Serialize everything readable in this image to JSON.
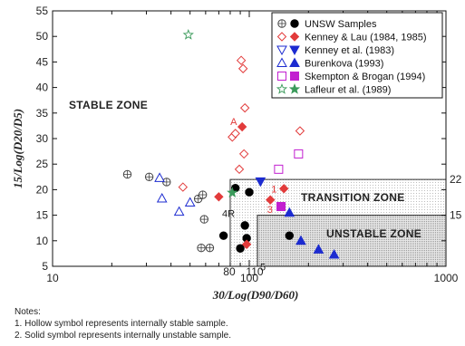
{
  "chart_data": {
    "type": "scatter",
    "title": "",
    "xlabel": "30/Log(D90/D60)",
    "ylabel": "15/Log(D20/D5)",
    "x_scale": "log",
    "xlim": [
      10,
      1000
    ],
    "ylim": [
      5,
      55
    ],
    "x_ticks": [
      "10",
      "100",
      "1000"
    ],
    "y_ticks": [
      "5",
      "10",
      "15",
      "20",
      "25",
      "30",
      "35",
      "40",
      "45",
      "50",
      "55"
    ],
    "grid": false,
    "legend_position": "top-right",
    "series": [
      {
        "name": "UNSW Samples",
        "color": "#000000",
        "hollow_marker": "circle-cross",
        "solid_marker": "circle",
        "hollow_points": [
          [
            24,
            23
          ],
          [
            31,
            22.5
          ],
          [
            38,
            21.5
          ],
          [
            55,
            18.2
          ],
          [
            58,
            19
          ],
          [
            59,
            14.2
          ],
          [
            57,
            8.6
          ],
          [
            63,
            8.6
          ]
        ],
        "solid_points": [
          [
            74,
            11
          ],
          [
            85,
            20.3
          ],
          [
            90,
            8.5
          ],
          [
            95,
            13
          ],
          [
            97,
            10.5
          ],
          [
            100,
            19.5
          ],
          [
            160,
            11
          ]
        ]
      },
      {
        "name": "Kenney & Lau (1984, 1985)",
        "color": "#e23b3b",
        "hollow_marker": "diamond",
        "solid_marker": "diamond",
        "hollow_points": [
          [
            46,
            20.5
          ],
          [
            82,
            30.3
          ],
          [
            85,
            31
          ],
          [
            89,
            24
          ],
          [
            91,
            45.3
          ],
          [
            93,
            43.7
          ],
          [
            94,
            27
          ],
          [
            95,
            36
          ],
          [
            181,
            31.5
          ]
        ],
        "solid_points": [
          [
            70,
            18.6
          ],
          [
            92,
            32.3
          ],
          [
            97,
            9.3
          ],
          [
            128,
            18
          ],
          [
            150,
            20.2
          ]
        ]
      },
      {
        "name": "Kenney et al. (1983)",
        "color": "#1c2bd0",
        "hollow_marker": "triangle-down",
        "solid_marker": "triangle-down",
        "hollow_points": [],
        "solid_points": [
          [
            114,
            21.6
          ]
        ]
      },
      {
        "name": "Burenkova (1993)",
        "color": "#1c2bd0",
        "hollow_marker": "triangle",
        "solid_marker": "triangle",
        "hollow_points": [
          [
            35,
            22.3
          ],
          [
            36,
            18.3
          ],
          [
            44,
            15.7
          ],
          [
            50,
            17.5
          ]
        ],
        "solid_points": [
          [
            160,
            15.5
          ],
          [
            183,
            10
          ],
          [
            225,
            8.3
          ],
          [
            270,
            7.3
          ]
        ]
      },
      {
        "name": "Skempton & Brogan (1994)",
        "color": "#c21fd0",
        "hollow_marker": "square",
        "solid_marker": "square",
        "hollow_points": [
          [
            178,
            27
          ],
          [
            141,
            24
          ]
        ],
        "solid_points": [
          [
            145,
            16.7
          ]
        ]
      },
      {
        "name": "Lafleur et al. (1989)",
        "color": "#3a9a5a",
        "hollow_marker": "star",
        "solid_marker": "star",
        "hollow_points": [
          [
            49,
            50.3
          ]
        ],
        "solid_points": [
          [
            82,
            19.4
          ]
        ]
      }
    ],
    "zones": [
      {
        "label": "STABLE ZONE"
      },
      {
        "label": "TRANSITION ZONE",
        "x_from": 80,
        "y_from": 5,
        "y_to": 22
      },
      {
        "label": "UNSTABLE ZONE",
        "x_from": 110,
        "y_from": 5,
        "y_to": 15
      }
    ],
    "boundary_labels": {
      "x1": "80",
      "x2": "110",
      "y1": "22",
      "y2": "15"
    },
    "point_annotations": [
      {
        "text": "A",
        "x": 90,
        "y": 32.3,
        "color": "#e23b3b"
      },
      {
        "text": "4R",
        "x": 80,
        "y": 16.8,
        "color": "#222222"
      },
      {
        "text": "1",
        "x": 150,
        "y": 20.2,
        "color": "#e23b3b"
      },
      {
        "text": "3",
        "x": 140,
        "y": 16.5,
        "color": "#e23b3b"
      },
      {
        "text": "5",
        "x": 110,
        "y": 5.8,
        "color": "#222222"
      }
    ]
  },
  "notes": {
    "heading": "Notes:",
    "line1": "1. Hollow symbol represents internally stable sample.",
    "line2": "2. Solid symbol represents internally unstable sample."
  }
}
